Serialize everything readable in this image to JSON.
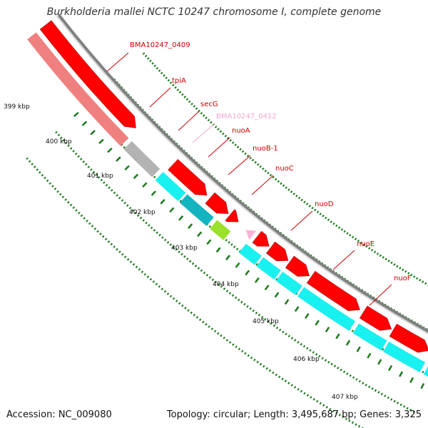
{
  "title": "Burkholderia mallei NCTC 10247 chromosome I, complete genome",
  "accession": "Accession: NC_009080",
  "summary": "Topology: circular; Length: 3,495,687 bp; Genes: 3,325",
  "kbp_labels": [
    "399 kbp",
    "400 kbp",
    "401 kbp",
    "402 kbp",
    "403 kbp",
    "404 kbp",
    "405 kbp",
    "406 kbp",
    "407 kbp"
  ],
  "genes": [
    {
      "id": "bma-0409",
      "label": "BMA10247_0409",
      "color": "#cc0000"
    },
    {
      "id": "tpia",
      "label": "tpiA",
      "color": "#cc0000"
    },
    {
      "id": "secg",
      "label": "secG",
      "color": "#cc0000"
    },
    {
      "id": "bma-0412",
      "label": "BMA10247_0412",
      "color": "#f2a6cf"
    },
    {
      "id": "nuoa",
      "label": "nuoA",
      "color": "#cc0000"
    },
    {
      "id": "nuob1",
      "label": "nuoB-1",
      "color": "#cc0000"
    },
    {
      "id": "nuoc",
      "label": "nuoC",
      "color": "#cc0000"
    },
    {
      "id": "nuod",
      "label": "nuoD",
      "color": "#cc0000"
    },
    {
      "id": "nuoe",
      "label": "nuoE",
      "color": "#cc0000"
    },
    {
      "id": "nuof",
      "label": "nuoF",
      "color": "#cc0000"
    }
  ],
  "colors": {
    "cds": "#ff0000",
    "cds_dark": "#b00000",
    "cog_cyan": "#19f0f0",
    "cog_teal": "#13b3c0",
    "cog_green": "#9be02a",
    "cog_salmon": "#f08080",
    "cog_gray": "#b3b3b3",
    "rna_pink": "#f7b3d7",
    "backbone": "#808080",
    "tick": "#1a7a1a"
  }
}
